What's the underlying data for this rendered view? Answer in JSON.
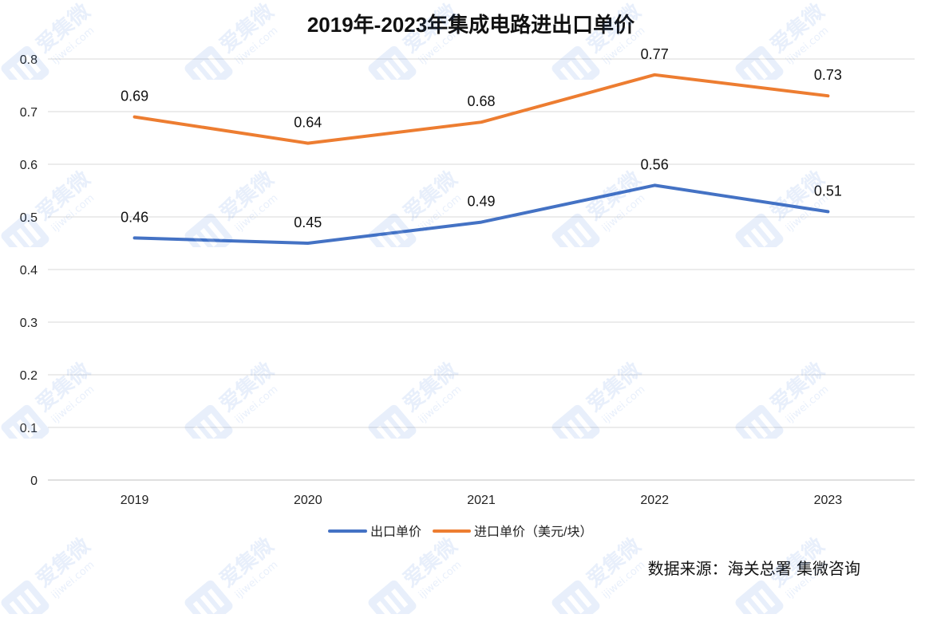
{
  "chart_data": {
    "type": "line",
    "title": "2019年-2023年集成电路进出口单价",
    "categories": [
      "2019",
      "2020",
      "2021",
      "2022",
      "2023"
    ],
    "series": [
      {
        "name": "出口单价",
        "color": "#4472c4",
        "values": [
          0.46,
          0.45,
          0.49,
          0.56,
          0.51
        ],
        "labels": [
          "0.46",
          "0.45",
          "0.49",
          "0.56",
          "0.51"
        ]
      },
      {
        "name": "进口单价（美元/块）",
        "color": "#ed7d31",
        "values": [
          0.69,
          0.64,
          0.68,
          0.77,
          0.73
        ],
        "labels": [
          "0.69",
          "0.64",
          "0.68",
          "0.77",
          "0.73"
        ]
      }
    ],
    "ylim": [
      0,
      0.8
    ],
    "yticks": [
      "0",
      "0.1",
      "0.2",
      "0.3",
      "0.4",
      "0.5",
      "0.6",
      "0.7",
      "0.8"
    ],
    "xlabel": "",
    "ylabel": "",
    "grid": true,
    "legend": "bottom"
  },
  "source": "数据来源：海关总署 集微咨询",
  "watermark": {
    "text": "爱集微",
    "site": "ijiwei.com"
  }
}
